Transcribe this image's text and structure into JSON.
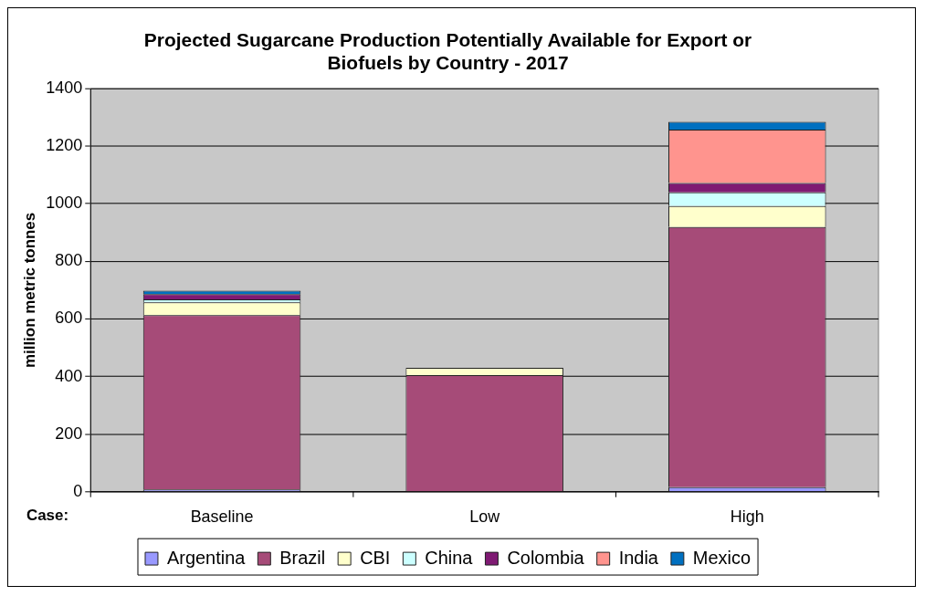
{
  "chart_data": {
    "type": "bar",
    "title": "Projected Sugarcane Production Potentially Available for Export or Biofuels by Country - 2017",
    "xlabel": "Case:",
    "ylabel": "million metric tonnes",
    "categories": [
      "Baseline",
      "Low",
      "High"
    ],
    "stacked": true,
    "ylim": [
      0,
      1400
    ],
    "yticks": [
      0,
      200,
      400,
      600,
      800,
      1000,
      1200,
      1400
    ],
    "grid": "y",
    "legend": "bottom",
    "series": [
      {
        "name": "Argentina",
        "color": "#9999ff",
        "values": [
          8,
          null,
          16
        ]
      },
      {
        "name": "Brazil",
        "color": "#a64b78",
        "values": [
          605,
          405,
          903
        ]
      },
      {
        "name": "CBI",
        "color": "#ffffcc",
        "values": [
          45,
          25,
          73
        ]
      },
      {
        "name": "China",
        "color": "#ccffff",
        "values": [
          10,
          null,
          48
        ]
      },
      {
        "name": "Colombia",
        "color": "#7f1a73",
        "values": [
          18,
          null,
          32
        ]
      },
      {
        "name": "India",
        "color": "#ff948e",
        "values": [
          null,
          null,
          186
        ]
      },
      {
        "name": "Mexico",
        "color": "#0070c0",
        "values": [
          12,
          null,
          27
        ]
      }
    ]
  }
}
